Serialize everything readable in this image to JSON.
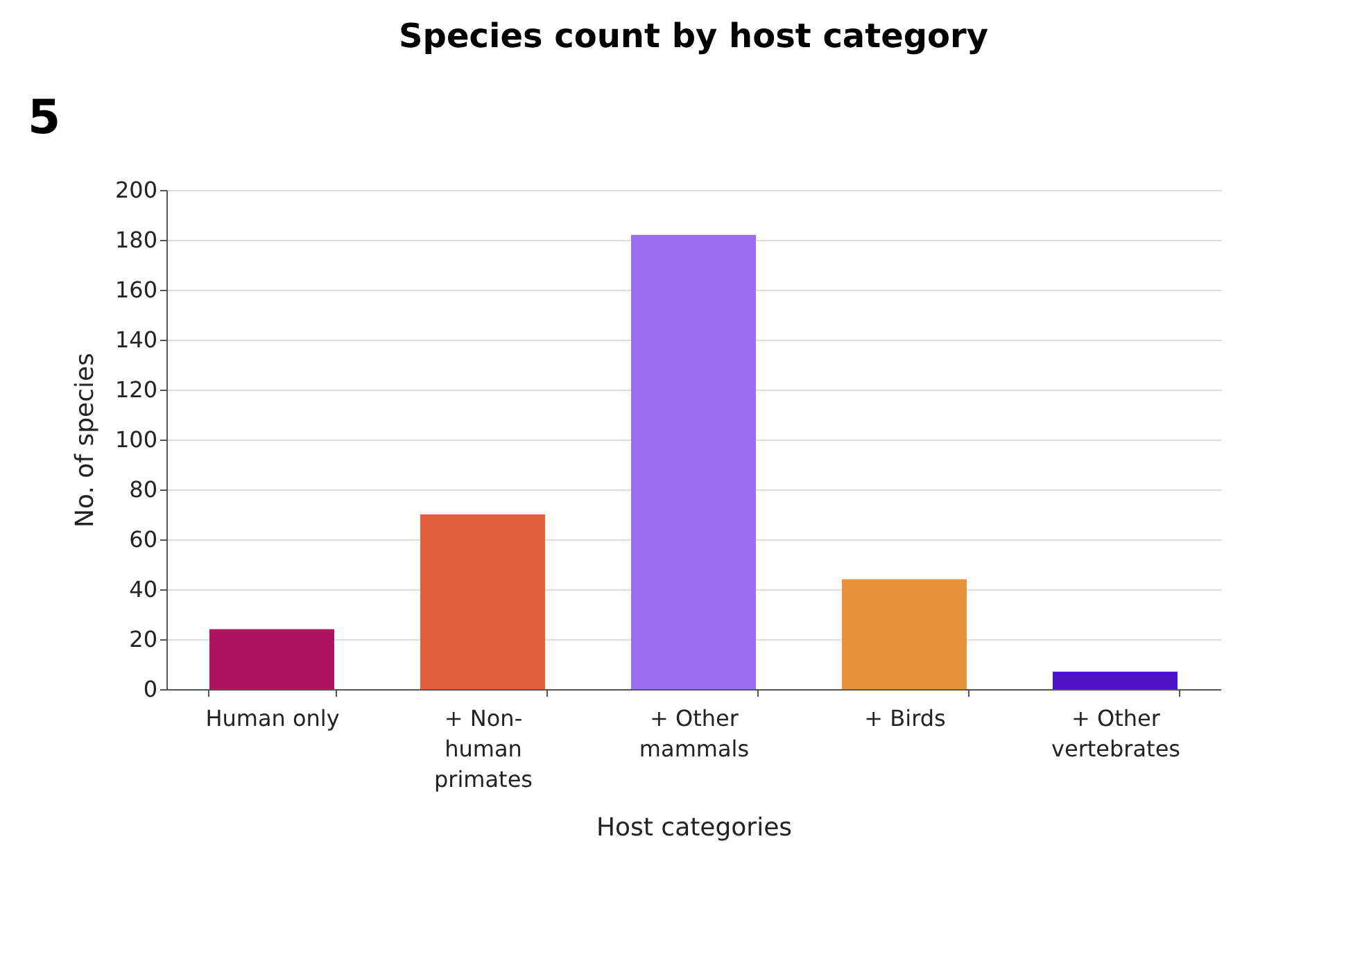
{
  "chart_data": {
    "type": "bar",
    "title": "Species count by host category",
    "annotations": [
      "5"
    ],
    "categories": [
      "Human only",
      "+ Non-human primates",
      "+ Other mammals",
      "+ Birds",
      "+ Other vertebrates"
    ],
    "values": [
      24,
      70,
      182,
      44,
      7
    ],
    "colors": [
      "#b0135f",
      "#e25f3c",
      "#9b6bf0",
      "#e8923c",
      "#4f14c4"
    ],
    "xlabel": "Host categories",
    "ylabel": "No. of species",
    "ylim": [
      0,
      200
    ],
    "yticks": [
      0,
      20,
      40,
      60,
      80,
      100,
      120,
      140,
      160,
      180,
      200
    ],
    "grid": "y"
  }
}
